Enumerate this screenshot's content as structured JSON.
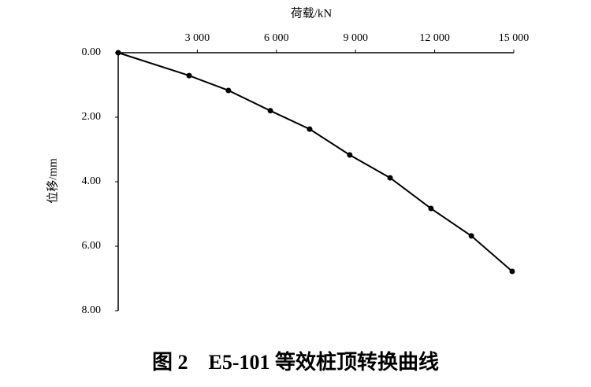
{
  "chart_data": {
    "type": "line",
    "caption": "图 2　E5-101 等效桩顶转换曲线",
    "xlabel": "荷载/kN",
    "ylabel": "位移/mm",
    "x": [
      0,
      2690,
      4180,
      5770,
      7260,
      8780,
      10310,
      11860,
      13390,
      14940
    ],
    "values": [
      0,
      0.71,
      1.17,
      1.8,
      2.37,
      3.17,
      3.88,
      4.83,
      5.68,
      6.78
    ],
    "color": "#000000",
    "xlim": [
      0,
      15000
    ],
    "xticks": [
      {
        "value": 3000,
        "label": "3 000"
      },
      {
        "value": 6000,
        "label": "6 000"
      },
      {
        "value": 9000,
        "label": "9 000"
      },
      {
        "value": 12000,
        "label": "12 000"
      },
      {
        "value": 15000,
        "label": "15 000"
      }
    ],
    "ylim": [
      0,
      8
    ],
    "y_inverted": true,
    "yticks": [
      {
        "value": 0,
        "label": "0.00"
      },
      {
        "value": 2,
        "label": "2.00"
      },
      {
        "value": 4,
        "label": "4.00"
      },
      {
        "value": 6,
        "label": "6.00"
      },
      {
        "value": 8,
        "label": "8.00"
      }
    ]
  }
}
